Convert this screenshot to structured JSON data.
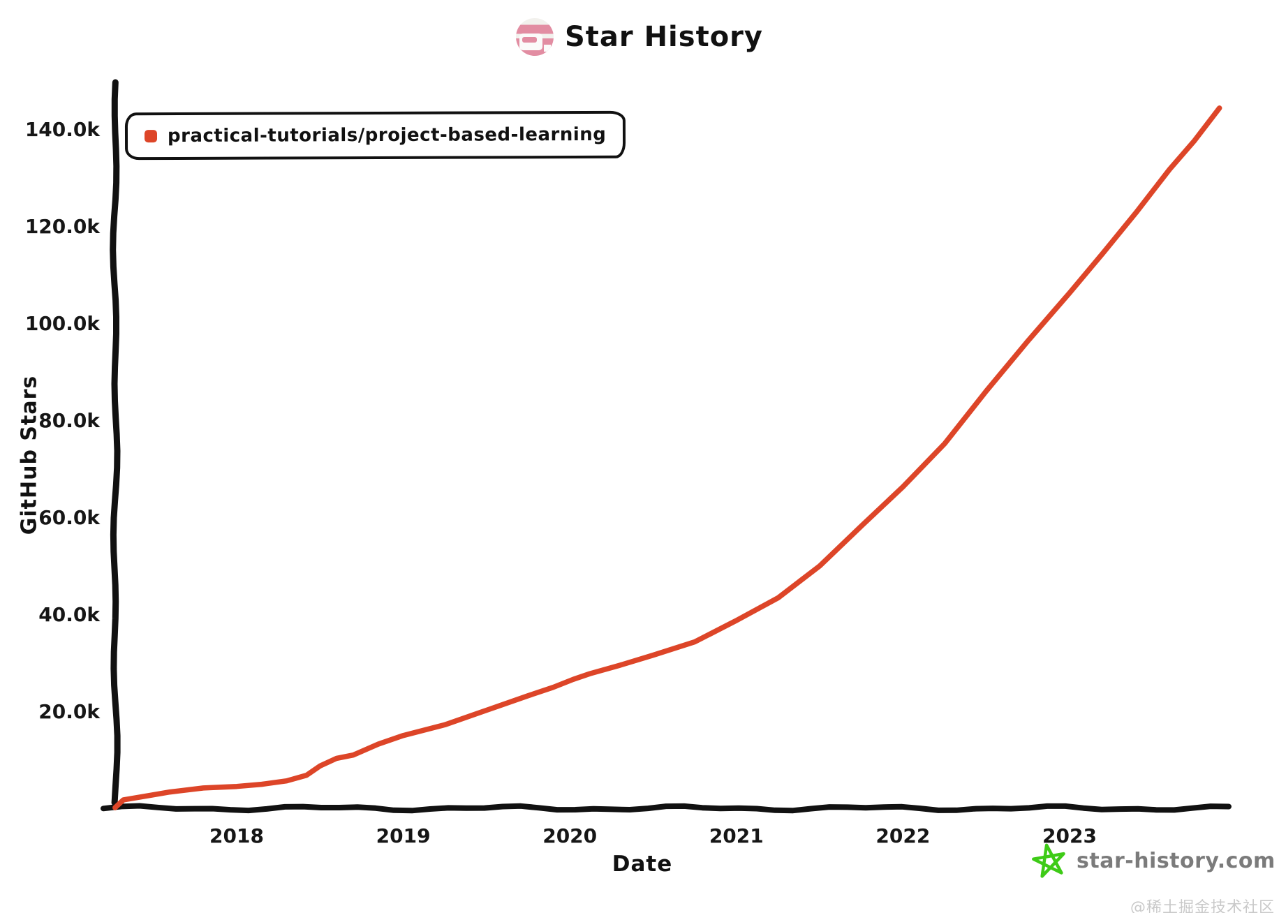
{
  "header": {
    "title": "Star History"
  },
  "legend": {
    "items": [
      {
        "label": "practical-tutorials/project-based-learning",
        "color": "#dd4528"
      }
    ]
  },
  "footer": {
    "site": "star-history.com",
    "star_color": "#3ecb17"
  },
  "watermark": "@稀土掘金技术社区",
  "chart_data": {
    "type": "line",
    "title": "Star History",
    "xlabel": "Date",
    "ylabel": "GitHub Stars",
    "legend_position": "top-left",
    "grid": false,
    "axis_color": "#111111",
    "ylim": [
      0,
      145000
    ],
    "xlim_years": [
      2017.25,
      2023.95
    ],
    "y_ticks": [
      {
        "label": "20.0k",
        "value": 20000
      },
      {
        "label": "40.0k",
        "value": 40000
      },
      {
        "label": "60.0k",
        "value": 60000
      },
      {
        "label": "80.0k",
        "value": 80000
      },
      {
        "label": "100.0k",
        "value": 100000
      },
      {
        "label": "120.0k",
        "value": 120000
      },
      {
        "label": "140.0k",
        "value": 140000
      }
    ],
    "x_ticks": [
      {
        "label": "2018",
        "year": 2018
      },
      {
        "label": "2019",
        "year": 2019
      },
      {
        "label": "2020",
        "year": 2020
      },
      {
        "label": "2021",
        "year": 2021
      },
      {
        "label": "2022",
        "year": 2022
      },
      {
        "label": "2023",
        "year": 2023
      }
    ],
    "series": [
      {
        "name": "practical-tutorials/project-based-learning",
        "color": "#dd4528",
        "points": [
          [
            2017.27,
            200
          ],
          [
            2017.32,
            1900
          ],
          [
            2017.45,
            2700
          ],
          [
            2017.6,
            3300
          ],
          [
            2017.8,
            4000
          ],
          [
            2018.0,
            4700
          ],
          [
            2018.15,
            5100
          ],
          [
            2018.3,
            5500
          ],
          [
            2018.42,
            6600
          ],
          [
            2018.5,
            8600
          ],
          [
            2018.6,
            10400
          ],
          [
            2018.7,
            11200
          ],
          [
            2018.85,
            13300
          ],
          [
            2019.0,
            14800
          ],
          [
            2019.25,
            17300
          ],
          [
            2019.5,
            20300
          ],
          [
            2019.75,
            23000
          ],
          [
            2019.9,
            25000
          ],
          [
            2020.02,
            26800
          ],
          [
            2020.12,
            27900
          ],
          [
            2020.3,
            29300
          ],
          [
            2020.5,
            31500
          ],
          [
            2020.75,
            34500
          ],
          [
            2021.0,
            38500
          ],
          [
            2021.25,
            43500
          ],
          [
            2021.5,
            50000
          ],
          [
            2021.75,
            58000
          ],
          [
            2022.0,
            66500
          ],
          [
            2022.25,
            75000
          ],
          [
            2022.5,
            86000
          ],
          [
            2022.75,
            96500
          ],
          [
            2023.0,
            106000
          ],
          [
            2023.2,
            114500
          ],
          [
            2023.4,
            123000
          ],
          [
            2023.6,
            131500
          ],
          [
            2023.75,
            137500
          ],
          [
            2023.9,
            144500
          ]
        ]
      }
    ]
  }
}
